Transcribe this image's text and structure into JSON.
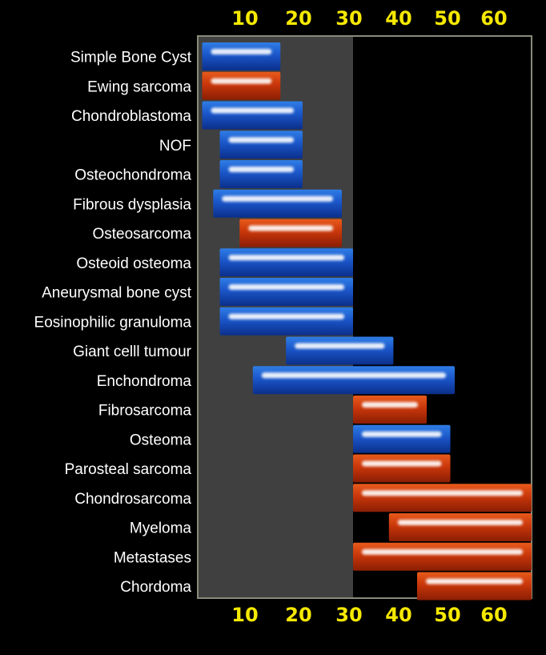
{
  "chart_data": {
    "type": "bar",
    "orientation": "horizontal-range",
    "title": "",
    "xlabel": "",
    "ylabel": "",
    "ticks_top": [
      "10",
      "20",
      "30",
      "40",
      "50",
      "60"
    ],
    "ticks_bottom": [
      "10",
      "20",
      "30",
      "40",
      "50",
      "60"
    ],
    "categories": [
      {
        "label": "Simple Bone Cyst",
        "start": 1,
        "end": 17,
        "color": "blue"
      },
      {
        "label": "Ewing sarcoma",
        "start": 1,
        "end": 17,
        "color": "red"
      },
      {
        "label": "Chondroblastoma",
        "start": 1,
        "end": 21,
        "color": "blue"
      },
      {
        "label": "NOF",
        "start": 5,
        "end": 21,
        "color": "blue"
      },
      {
        "label": "Osteochondroma",
        "start": 5,
        "end": 21,
        "color": "blue"
      },
      {
        "label": "Fibrous dysplasia",
        "start": 3.5,
        "end": 28,
        "color": "blue"
      },
      {
        "label": "Osteosarcoma",
        "start": 9.5,
        "end": 28,
        "color": "red"
      },
      {
        "label": "Osteoid osteoma",
        "start": 5,
        "end": 30,
        "color": "blue"
      },
      {
        "label": "Aneurysmal bone cyst",
        "start": 5,
        "end": 30,
        "color": "blue"
      },
      {
        "label": "Eosinophilic granuloma",
        "start": 5,
        "end": 30,
        "color": "blue"
      },
      {
        "label": "Giant celll tumour",
        "start": 18,
        "end": 39,
        "color": "blue"
      },
      {
        "label": "Enchondroma",
        "start": 12,
        "end": 52,
        "color": "blue"
      },
      {
        "label": "Fibrosarcoma",
        "start": 30,
        "end": 46,
        "color": "red"
      },
      {
        "label": "Osteoma",
        "start": 30,
        "end": 51,
        "color": "blue"
      },
      {
        "label": "Parosteal sarcoma",
        "start": 30,
        "end": 51,
        "color": "red"
      },
      {
        "label": "Chondrosarcoma",
        "start": 30,
        "end": 64,
        "color": "red"
      },
      {
        "label": "Myeloma",
        "start": 38,
        "end": 64,
        "color": "red"
      },
      {
        "label": "Metastases",
        "start": 30,
        "end": 64,
        "color": "red"
      },
      {
        "label": "Chordoma",
        "start": 44,
        "end": 64,
        "color": "red"
      }
    ],
    "colors": {
      "background": "#000000",
      "shaded_region": "#404040",
      "tick_label": "#f5e800",
      "blue_bar": "#1f5fd0",
      "red_bar": "#c83a0c"
    },
    "shaded_range": [
      0,
      30
    ]
  }
}
